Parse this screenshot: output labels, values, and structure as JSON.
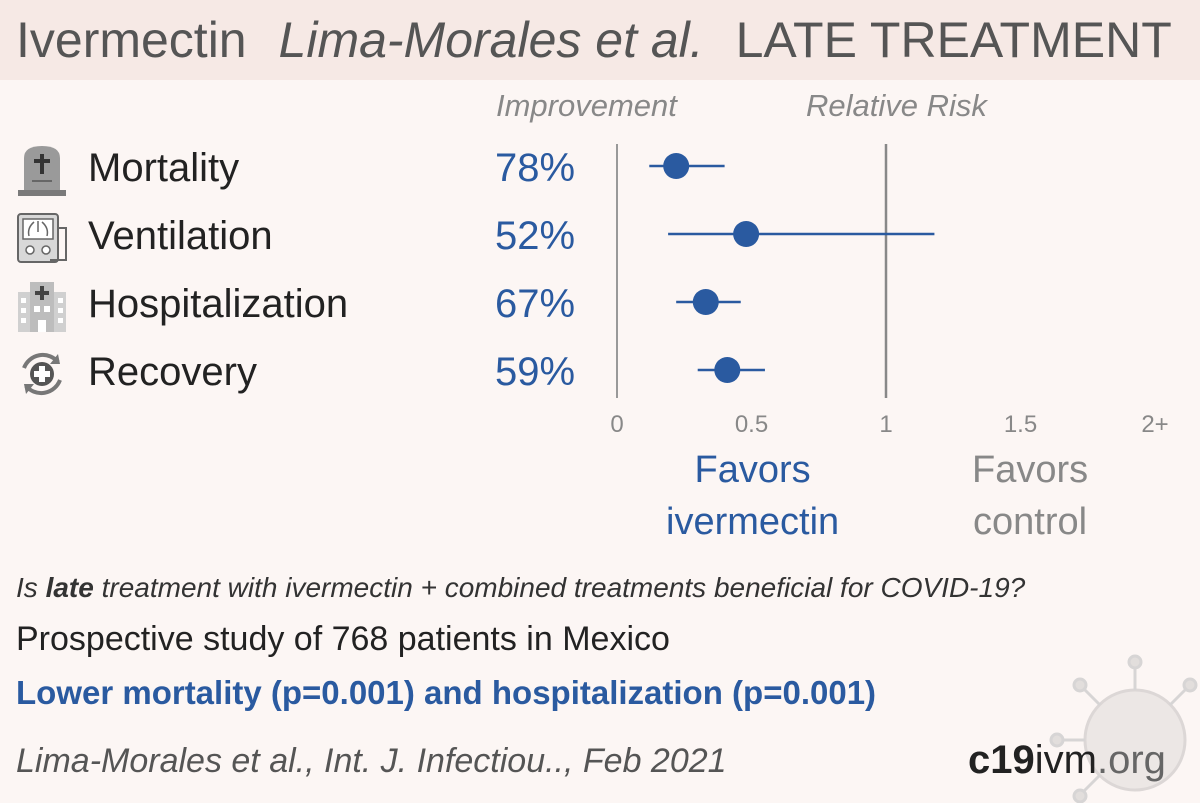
{
  "header": {
    "drug": "Ivermectin",
    "study": "Lima-Morales et al.",
    "stage": "LATE TREATMENT"
  },
  "columns": {
    "improvement": "Improvement",
    "relative_risk": "Relative Risk"
  },
  "chart_data": {
    "type": "forest",
    "xlim": [
      0,
      2
    ],
    "x_ticks": [
      "0",
      "0.5",
      "1",
      "1.5",
      "2+"
    ],
    "reference_line": 1,
    "rows": [
      {
        "outcome": "Mortality",
        "improvement": "78%",
        "rr": 0.22,
        "ci": [
          0.12,
          0.4
        ],
        "icon": "tombstone-icon"
      },
      {
        "outcome": "Ventilation",
        "improvement": "52%",
        "rr": 0.48,
        "ci": [
          0.19,
          1.18
        ],
        "icon": "ventilator-icon"
      },
      {
        "outcome": "Hospitalization",
        "improvement": "67%",
        "rr": 0.33,
        "ci": [
          0.22,
          0.46
        ],
        "icon": "hospital-icon"
      },
      {
        "outcome": "Recovery",
        "improvement": "59%",
        "rr": 0.41,
        "ci": [
          0.3,
          0.55
        ],
        "icon": "recovery-icon"
      }
    ],
    "favors_left": [
      "Favors",
      "ivermectin"
    ],
    "favors_right": [
      "Favors",
      "control"
    ]
  },
  "colors": {
    "accent": "#2a5aa0",
    "muted": "#888888",
    "header_bg": "#f6e9e5",
    "background": "#fcf6f4"
  },
  "question": {
    "pre": "Is ",
    "bold": "late",
    "post": " treatment with ivermectin + combined treatments beneficial for COVID-19?"
  },
  "study_desc": "Prospective study of 768 patients in Mexico",
  "conclusion": "Lower mortality (p=0.001) and hospitalization (p=0.001)",
  "citation": "Lima-Morales et al., Int. J. Infectiou.., Feb 2021",
  "site": {
    "bold": "c19",
    "mid": "ivm",
    "tld": ".org"
  }
}
